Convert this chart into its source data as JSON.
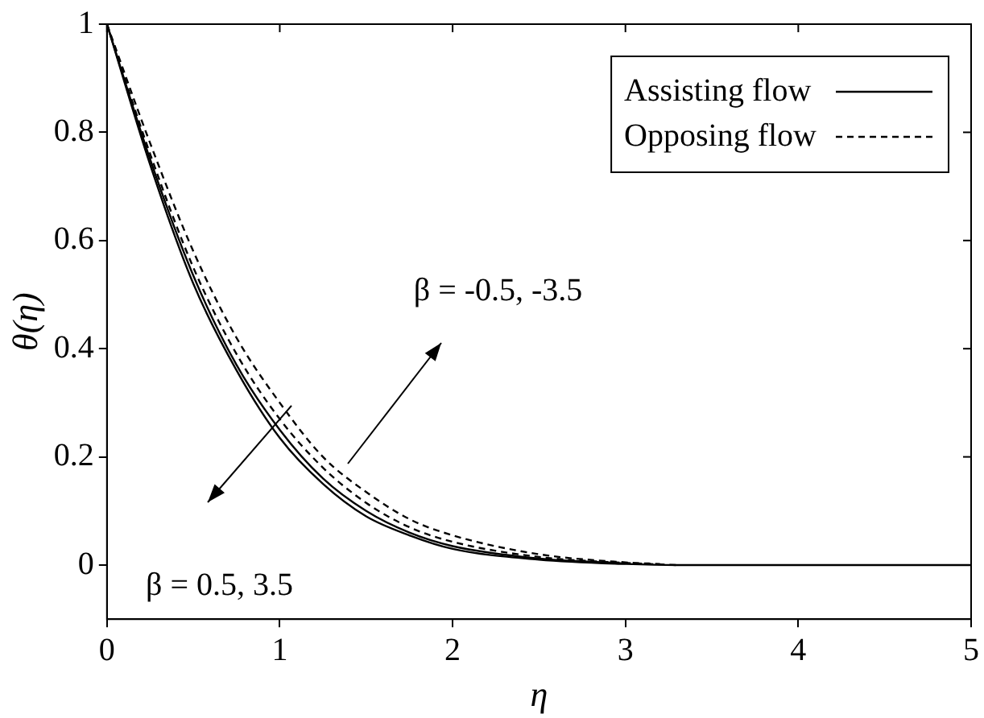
{
  "chart_data": {
    "type": "line",
    "xlabel": "η",
    "ylabel": "θ(η)",
    "xlim": [
      0,
      5
    ],
    "ylim": [
      -0.1,
      1
    ],
    "xticks": [
      0,
      1,
      2,
      3,
      4,
      5
    ],
    "yticks": [
      0,
      0.2,
      0.4,
      0.6,
      0.8,
      1
    ],
    "grid": false,
    "legend": "top right",
    "marker": "none",
    "series": [
      {
        "name": "Assisting flow",
        "color": "#000000",
        "line_style": "solid",
        "x": [
          0,
          0.25,
          0.5,
          0.75,
          1,
          1.25,
          1.5,
          1.75,
          2,
          2.5,
          3,
          3.3,
          5
        ],
        "values": [
          1,
          0.74,
          0.52,
          0.36,
          0.235,
          0.15,
          0.09,
          0.055,
          0.03,
          0.01,
          0.002,
          0,
          0
        ]
      },
      {
        "color": "#000000",
        "line_style": "solid",
        "x": [
          0,
          0.25,
          0.5,
          0.75,
          1,
          1.25,
          1.5,
          1.75,
          2,
          2.5,
          3
        ],
        "values": [
          1,
          0.75,
          0.535,
          0.37,
          0.25,
          0.16,
          0.1,
          0.06,
          0.035,
          0.012,
          0.003
        ]
      },
      {
        "name": "Opposing flow",
        "color": "#000000",
        "line_style": "dashed",
        "x": [
          0,
          0.25,
          0.5,
          0.75,
          1,
          1.25,
          1.5,
          1.75,
          2,
          2.5,
          3,
          3.3
        ],
        "values": [
          1,
          0.76,
          0.55,
          0.39,
          0.27,
          0.18,
          0.115,
          0.07,
          0.043,
          0.015,
          0.004,
          0
        ]
      },
      {
        "color": "#000000",
        "line_style": "dashed",
        "x": [
          0,
          0.25,
          0.5,
          0.75,
          1,
          1.25,
          1.5,
          1.75,
          2,
          2.5,
          3,
          3.2
        ],
        "values": [
          1,
          0.78,
          0.58,
          0.42,
          0.3,
          0.2,
          0.135,
          0.085,
          0.055,
          0.02,
          0.005,
          0.002
        ]
      }
    ],
    "annotations": [
      "β = -0.5, -3.5",
      "β = 0.5, 3.5"
    ]
  }
}
